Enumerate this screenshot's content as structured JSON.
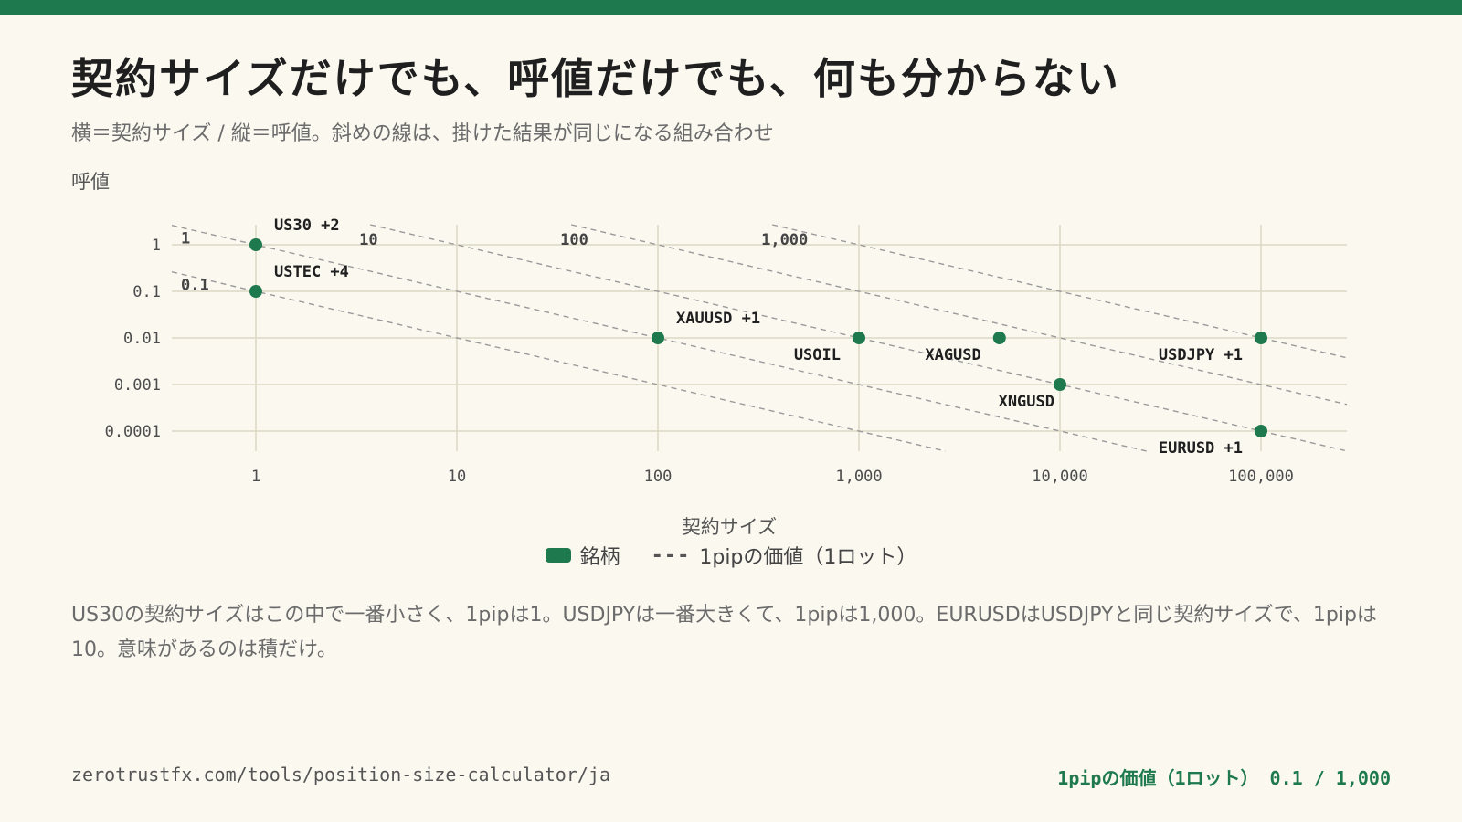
{
  "header": {
    "title": "契約サイズだけでも、呼値だけでも、何も分からない",
    "subtitle": "横＝契約サイズ / 縦＝呼値。斜めの線は、掛けた結果が同じになる組み合わせ"
  },
  "chart_data": {
    "type": "scatter",
    "xlabel": "契約サイズ",
    "ylabel": "呼値",
    "xscale": "log",
    "yscale": "log",
    "xlim": [
      0.42,
      200000
    ],
    "ylim": [
      6e-05,
      2
    ],
    "x_ticks": [
      1,
      10,
      100,
      1000,
      10000,
      100000
    ],
    "x_tick_labels": [
      "1",
      "10",
      "100",
      "1,000",
      "10,000",
      "100,000"
    ],
    "y_ticks": [
      1,
      0.1,
      0.01,
      0.001,
      0.0001
    ],
    "y_tick_labels": [
      "1",
      "0.1",
      "0.01",
      "0.001",
      "0.0001"
    ],
    "grid": true,
    "points": [
      {
        "name": "US30",
        "x": 1,
        "y": 1,
        "label": "US30  +2"
      },
      {
        "name": "USTEC",
        "x": 1,
        "y": 0.1,
        "label": "USTEC  +4"
      },
      {
        "name": "XAUUSD",
        "x": 100,
        "y": 0.01,
        "label": "XAUUSD  +1"
      },
      {
        "name": "USOIL",
        "x": 1000,
        "y": 0.01,
        "label": "USOIL"
      },
      {
        "name": "XAGUSD",
        "x": 5000,
        "y": 0.01,
        "label": "XAGUSD"
      },
      {
        "name": "XNGUSD",
        "x": 10000,
        "y": 0.001,
        "label": "XNGUSD"
      },
      {
        "name": "USDJPY",
        "x": 100000,
        "y": 0.01,
        "label": "USDJPY  +1"
      },
      {
        "name": "EURUSD",
        "x": 100000,
        "y": 0.0001,
        "label": "EURUSD  +1"
      }
    ],
    "iso_lines": [
      {
        "value": 0.1,
        "label": "0.1"
      },
      {
        "value": 1,
        "label": "1"
      },
      {
        "value": 10,
        "label": "10"
      },
      {
        "value": 100,
        "label": "100"
      },
      {
        "value": 1000,
        "label": "1,000"
      }
    ],
    "legend": [
      {
        "label": "銘柄",
        "kind": "point"
      },
      {
        "label": "1pipの価値（1ロット）",
        "kind": "dashed-line"
      }
    ],
    "legend_placement": "bottom-center",
    "colors": {
      "point": "#1e7a4e",
      "grid": "#ddd8c4",
      "iso_line": "#9a9a9a"
    }
  },
  "legend": {
    "points_label": "銘柄",
    "dash_symbol": "---",
    "line_label": "1pipの価値（1ロット）"
  },
  "description": "US30の契約サイズはこの中で一番小さく、1pipは1。USDJPYは一番大きくて、1pipは1,000。EURUSDはUSDJPYと同じ契約サイズで、1pipは10。意味があるのは積だけ。",
  "footer": {
    "url": "zerotrustfx.com/tools/position-size-calculator/ja",
    "range": "1pipの価値（1ロット） 0.1 / 1,000"
  },
  "colors": {
    "accent": "#1e7a4e",
    "background": "#fbf8f0"
  }
}
